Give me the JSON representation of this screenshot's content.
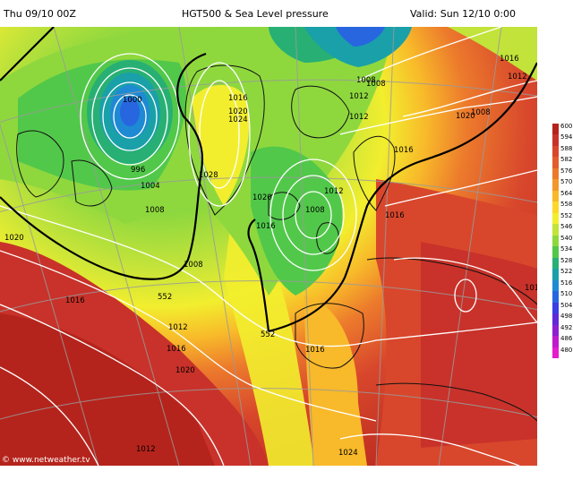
{
  "header": {
    "run": "Thu 09/10 00Z",
    "title": "HGT500 & Sea Level pressure",
    "valid": "Valid: Sun 12/10 0:00"
  },
  "credit": "© www.netweather.tv",
  "colorbar": {
    "ticks": [
      "600",
      "594",
      "588",
      "582",
      "576",
      "570",
      "564",
      "558",
      "552",
      "546",
      "540",
      "534",
      "528",
      "522",
      "516",
      "510",
      "504",
      "498",
      "492",
      "486",
      "480"
    ],
    "colors": [
      "#b5241c",
      "#c8322a",
      "#d8472c",
      "#e35c2c",
      "#ec7a2c",
      "#f3982a",
      "#f8b92a",
      "#fbd92a",
      "#f2ee2e",
      "#c2e33a",
      "#8ed83e",
      "#52c84a",
      "#28b074",
      "#1aa0a8",
      "#1e8ad4",
      "#2866e0",
      "#3a3ee4",
      "#6028d8",
      "#8e1ed0",
      "#c018cc",
      "#e41ccc"
    ]
  },
  "isobars": [
    "1016",
    "1008",
    "1012",
    "1000",
    "996",
    "1004",
    "1008",
    "1016",
    "1020",
    "1024",
    "1028",
    "1020",
    "1016",
    "1012",
    "1008",
    "1016",
    "1020",
    "1016",
    "1008",
    "1012",
    "1016",
    "1012",
    "1016",
    "1020",
    "1024",
    "1012",
    "1008",
    "1012",
    "1016",
    "1020",
    "1008",
    "1012"
  ],
  "contours_500": [
    "552",
    "552"
  ]
}
